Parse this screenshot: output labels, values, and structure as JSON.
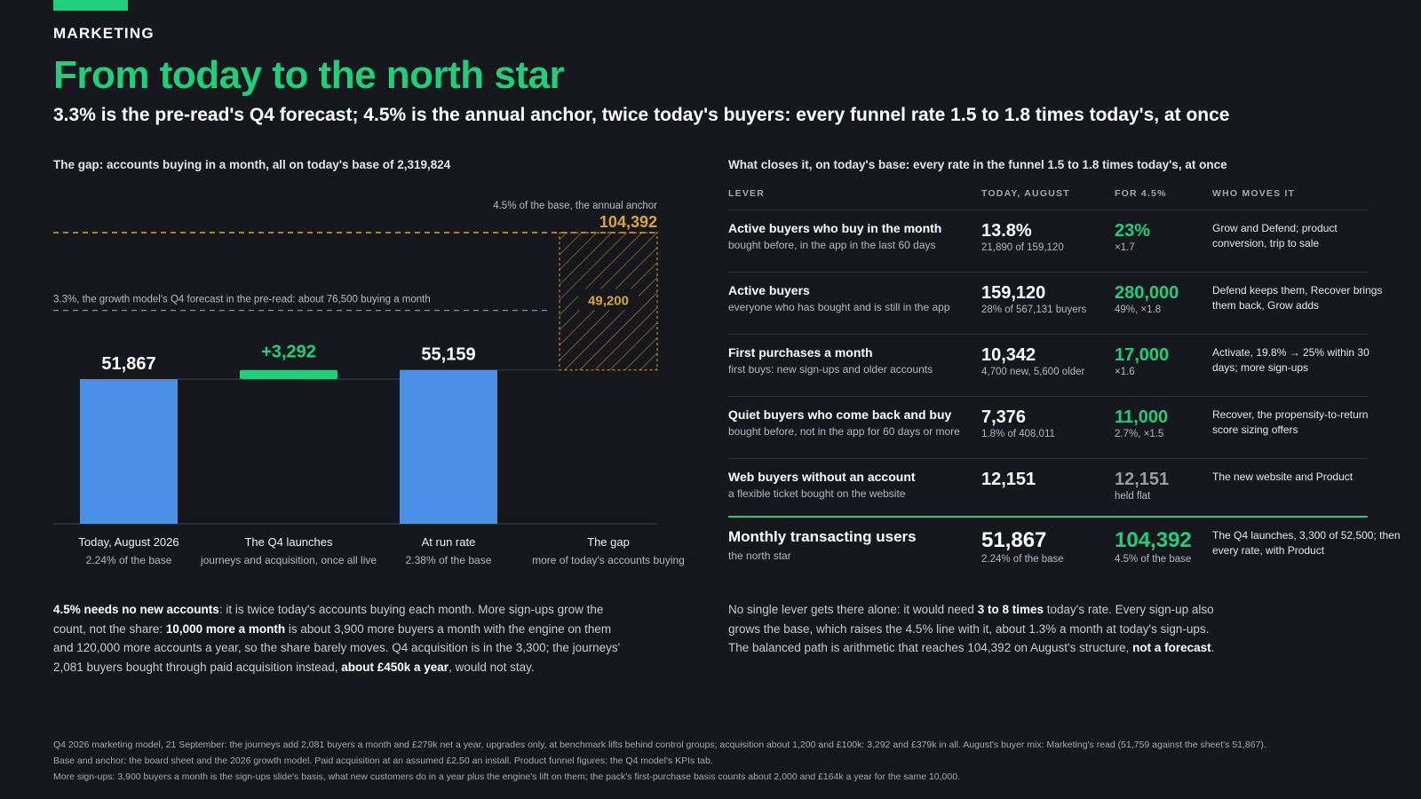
{
  "eyebrow": "MARKETING",
  "title": "From today to the north star",
  "subtitle": "3.3% is the pre-read's Q4 forecast; 4.5% is the annual anchor, twice today's buyers: every funnel rate 1.5 to 1.8 times today's, at once",
  "colors": {
    "accent": "#1ed07a",
    "bar": "#4a90e8",
    "gap": "#d9a536",
    "guide": "#8d8e95"
  },
  "left_panel": {
    "title": "The gap: accounts buying in a month, all on today's base of 2,319,824"
  },
  "chart_data": {
    "type": "bar",
    "variant": "waterfall",
    "categories": [
      "Today, August 2026",
      "The Q4 launches",
      "At run rate",
      "The gap"
    ],
    "category_subs": [
      "2.24% of the base",
      "journeys and acquisition, once all live",
      "2.38% of the base",
      "more of today's accounts buying"
    ],
    "bars": [
      {
        "kind": "total",
        "value": 51867,
        "label": "51,867"
      },
      {
        "kind": "increase",
        "base": 51867,
        "value": 3292,
        "label": "+3,292"
      },
      {
        "kind": "total",
        "value": 55159,
        "label": "55,159"
      },
      {
        "kind": "gap",
        "base": 55159,
        "value": 49200,
        "label": "49,200"
      }
    ],
    "reference_lines": [
      {
        "value": 104392,
        "label": "4.5% of the base, the annual anchor",
        "value_label": "104,392"
      },
      {
        "value": 76500,
        "label": "3.3%, the growth model's Q4 forecast in the pre-read: about 76,500 buying a month"
      }
    ],
    "ylim": [
      0,
      104392
    ],
    "grid": false
  },
  "right_panel": {
    "title": "What closes it, on today's base: every rate in the funnel 1.5 to 1.8 times today's, at once",
    "headers": {
      "lever": "LEVER",
      "today": "TODAY, AUGUST",
      "target": "FOR 4.5%",
      "who": "WHO MOVES IT"
    },
    "rows": [
      {
        "name": "Active buyers who buy in the month",
        "sub": "bought before, in the app in the last 60 days",
        "today": "13.8%",
        "today_sub": "21,890 of 159,120",
        "target": "23%",
        "target_sub": "×1.7",
        "who": "Grow and Defend; product conversion, trip to sale"
      },
      {
        "name": "Active buyers",
        "sub": "everyone who has bought and is still in the app",
        "today": "159,120",
        "today_sub": "28% of 567,131 buyers",
        "target": "280,000",
        "target_sub": "49%, ×1.8",
        "who": "Defend keeps them, Recover brings them back, Grow adds"
      },
      {
        "name": "First purchases a month",
        "sub": "first buys: new sign-ups and older accounts",
        "today": "10,342",
        "today_sub": "4,700 new, 5,600 older",
        "target": "17,000",
        "target_sub": "×1.6",
        "who": "Activate, 19.8% → 25% within 30 days; more sign-ups"
      },
      {
        "name": "Quiet buyers who come back and buy",
        "sub": "bought before, not in the app for 60 days or more",
        "today": "7,376",
        "today_sub": "1.8% of 408,011",
        "target": "11,000",
        "target_sub": "2.7%, ×1.5",
        "who": "Recover, the propensity-to-return score sizing offers"
      },
      {
        "name": "Web buyers without an account",
        "sub": "a flexible ticket bought on the website",
        "today": "12,151",
        "today_sub": "",
        "target": "12,151",
        "target_sub": "held flat",
        "who": "The new website and Product"
      }
    ],
    "total": {
      "name": "Monthly transacting users",
      "sub": "the north star",
      "today": "51,867",
      "today_sub": "2.24% of the base",
      "target": "104,392",
      "target_sub": "4.5% of the base",
      "who": "The Q4 launches, 3,300 of 52,500; then every rate, with Product"
    }
  },
  "left_para": {
    "b1": "4.5% needs no new accounts",
    "t1": ": it is twice today's accounts buying each month. More sign-ups grow the count, not the share: ",
    "b2": "10,000 more a month",
    "t2": " is about 3,900 more buyers a month with the engine on them and 120,000 more accounts a year, so the share barely moves. Q4 acquisition is in the 3,300; the journeys' 2,081 buyers bought through paid acquisition instead, ",
    "b3": "about £450k a year",
    "t3": ", would not stay."
  },
  "right_para": {
    "t1": "No single lever gets there alone: it would need ",
    "b1": "3 to 8 times",
    "t2": " today's rate. Every sign-up also grows the base, which raises the 4.5% line with it, about 1.3% a month at today's sign-ups. The balanced path is arithmetic that reaches 104,392 on August's structure, ",
    "b2": "not a forecast",
    "t3": "."
  },
  "footnotes": [
    "Q4 2026 marketing model, 21 September: the journeys add 2,081 buyers a month and £279k net a year, upgrades only, at benchmark lifts behind control groups; acquisition about 1,200 and £100k: 3,292 and £379k in all. August's buyer mix: Marketing's read (51,759 against the sheet's 51,867).",
    "Base and anchor: the board sheet and the 2026 growth model. Paid acquisition at an assumed £2.50 an install. Product funnel figures: the Q4 model's KPIs tab.",
    "More sign-ups: 3,900 buyers a month is the sign-ups slide's basis, what new customers do in a year plus the engine's lift on them; the pack's first-purchase basis counts about 2,000 and £164k a year for the same 10,000."
  ]
}
